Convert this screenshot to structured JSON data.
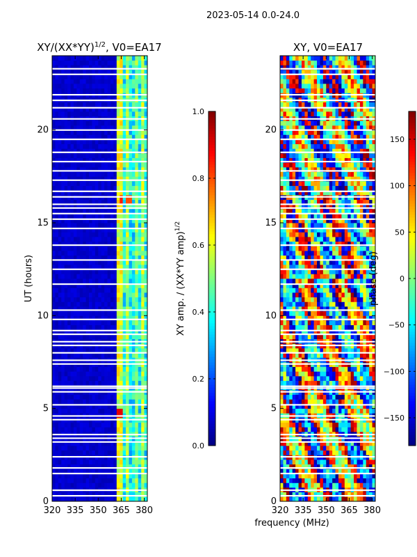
{
  "figure": {
    "suptitle": "2023-05-14 0.0-24.0",
    "xlabel_shared": "frequency (MHz)"
  },
  "chart_data": [
    {
      "type": "heatmap",
      "title": "XY/(XX*YY)",
      "title_exponent": "1/2",
      "title_suffix": ", V0=EA17",
      "xlabel": "",
      "ylabel": "UT (hours)",
      "xlim": [
        320,
        382
      ],
      "ylim": [
        0,
        24
      ],
      "xticks": [
        320,
        335,
        350,
        365,
        380
      ],
      "yticks": [
        0,
        5,
        10,
        15,
        20
      ],
      "colorbar": {
        "label": "XY amp. / (XX*YY amp)",
        "label_exponent": "1/2",
        "range": [
          0.0,
          1.0
        ],
        "ticks": [
          "0.0",
          "0.2",
          "0.4",
          "0.6",
          "0.8",
          "1.0"
        ],
        "tick_values": [
          0.0,
          0.2,
          0.4,
          0.6,
          0.8,
          1.0
        ]
      },
      "band_low": [
        320,
        362
      ],
      "band_low_value": 0.05,
      "band_high": [
        362,
        382
      ],
      "band_high_value": 0.45,
      "bright_channels": [
        {
          "freq": 364,
          "value": 0.6
        },
        {
          "freq": 369,
          "value": 0.55
        },
        {
          "freq": 375,
          "value": 0.5
        },
        {
          "freq": 379,
          "value": 0.55
        }
      ],
      "hot_spots": [
        {
          "t": 4.8,
          "freq": 364,
          "value": 0.9
        },
        {
          "t": 16.2,
          "freq": 365,
          "value": 0.85
        },
        {
          "t": 16.2,
          "freq": 370,
          "value": 0.8
        }
      ]
    },
    {
      "type": "heatmap",
      "title": "XY, V0=EA17",
      "xlabel": "frequency (MHz)",
      "ylabel": "",
      "xlim": [
        320,
        382
      ],
      "ylim": [
        0,
        24
      ],
      "xticks": [
        320,
        335,
        350,
        365,
        380
      ],
      "yticks": [
        0,
        5,
        10,
        15,
        20
      ],
      "colorbar": {
        "label": "phase (deg)",
        "range": [
          -180,
          180
        ],
        "ticks": [
          "150",
          "100",
          "50",
          "0",
          "−50",
          "−100",
          "−150"
        ],
        "tick_values": [
          150,
          100,
          50,
          0,
          -50,
          -100,
          -150
        ]
      },
      "phase_regions": [
        {
          "t0": 0,
          "t1": 6,
          "dominant_deg": 150
        },
        {
          "t0": 6,
          "t1": 12,
          "dominant_deg": -160
        },
        {
          "t0": 12,
          "t1": 16.5,
          "dominant_deg": 40
        },
        {
          "t0": 16.5,
          "t1": 24,
          "dominant_deg": -60
        }
      ]
    }
  ],
  "flagged_times_hours": [
    0.3,
    0.6,
    1.5,
    1.8,
    2.4,
    3.2,
    3.4,
    3.6,
    4.4,
    4.6,
    5.2,
    5.9,
    6.1,
    6.2,
    7.4,
    7.6,
    8.0,
    8.4,
    8.6,
    9.0,
    9.2,
    9.8,
    10.3,
    11.7,
    12.5,
    13.0,
    13.8,
    14.7,
    15.2,
    15.5,
    15.8,
    16.0,
    16.4,
    16.7,
    17.3,
    17.8,
    18.3,
    18.8,
    19.5,
    20.0,
    20.6,
    21.2,
    21.6,
    21.9,
    23.0,
    23.3
  ]
}
